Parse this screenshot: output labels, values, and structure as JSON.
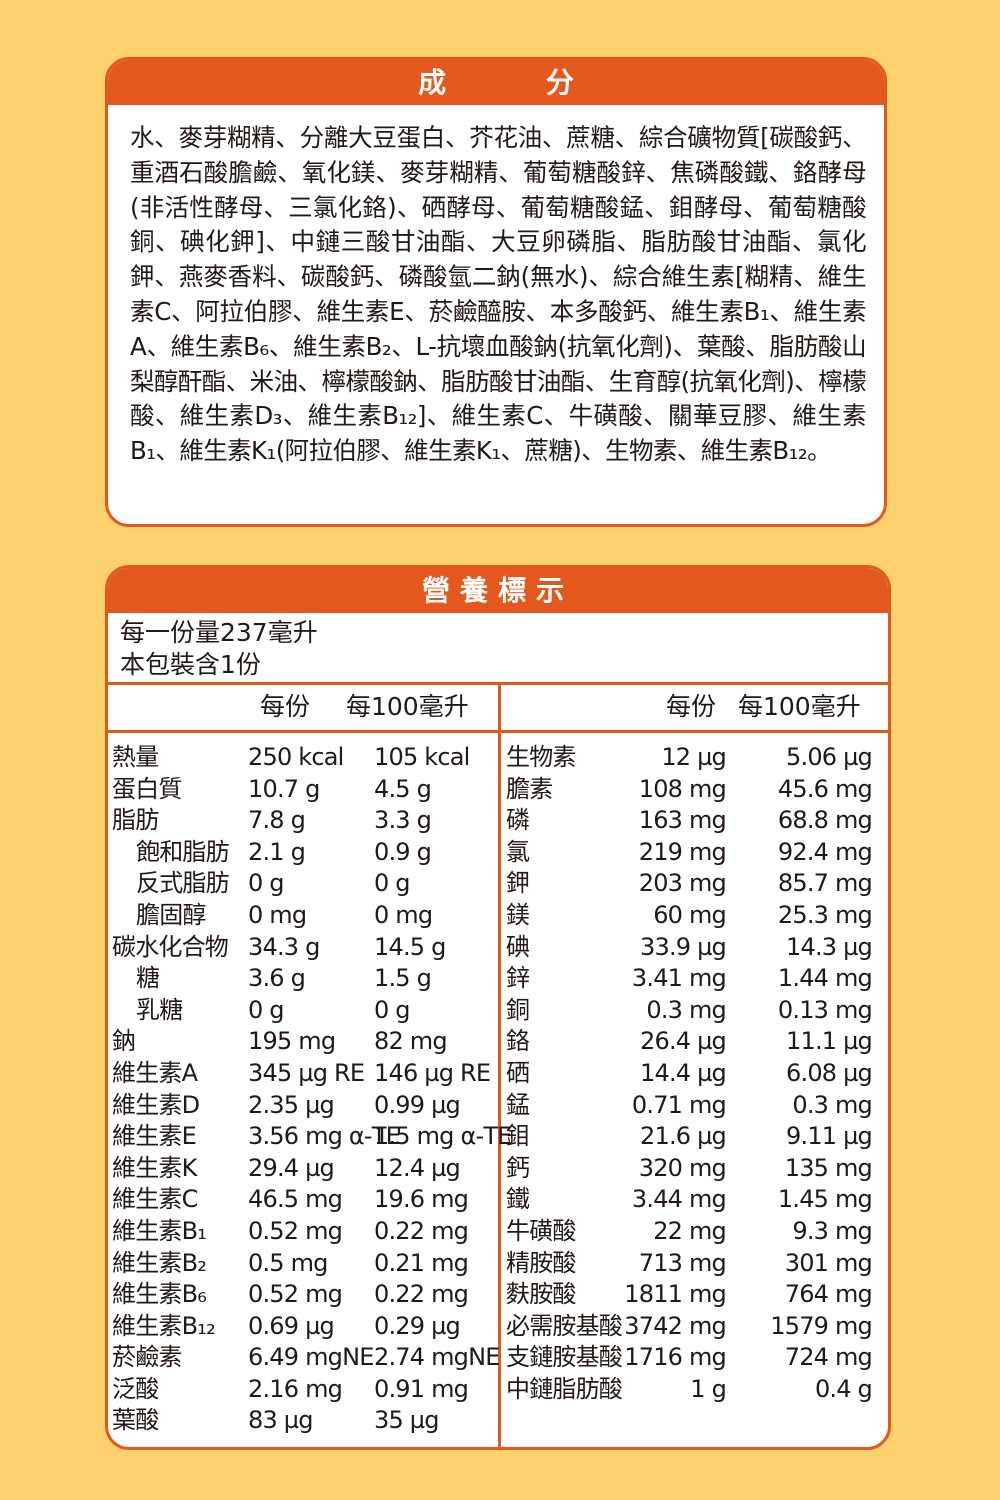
{
  "ingredients": {
    "title": "成 分",
    "text": "水、麥芽糊精、分離大豆蛋白、芥花油、蔗糖、綜合礦物質[碳酸鈣、重酒石酸膽鹼、氧化鎂、麥芽糊精、葡萄糖酸鋅、焦磷酸鐵、鉻酵母(非活性酵母、三氯化鉻)、硒酵母、葡萄糖酸錳、鉬酵母、葡萄糖酸銅、碘化鉀]、中鏈三酸甘油酯、大豆卵磷脂、脂肪酸甘油酯、氯化鉀、燕麥香料、碳酸鈣、磷酸氫二鈉(無水)、綜合維生素[糊精、維生素C、阿拉伯膠、維生素E、菸鹼醯胺、本多酸鈣、維生素B₁、維生素A、維生素B₆、維生素B₂、L-抗壞血酸鈉(抗氧化劑)、葉酸、脂肪酸山梨醇酐酯、米油、檸檬酸鈉、脂肪酸甘油酯、生育醇(抗氧化劑)、檸檬酸、維生素D₃、維生素B₁₂]、維生素C、牛磺酸、關華豆膠、維生素B₁、維生素K₁(阿拉伯膠、維生素K₁、蔗糖)、生物素、維生素B₁₂。"
  },
  "nutrition": {
    "title": "營養標示",
    "serving_size": "每一份量237毫升",
    "servings": "本包裝含1份",
    "col_per_serving": "每份",
    "col_per_100": "每100毫升",
    "left_rows": [
      {
        "name": "熱量",
        "per": "250 kcal",
        "per100": "105 kcal",
        "indent": false
      },
      {
        "name": "蛋白質",
        "per": "10.7 g",
        "per100": "4.5 g",
        "indent": false
      },
      {
        "name": "脂肪",
        "per": "7.8 g",
        "per100": "3.3 g",
        "indent": false
      },
      {
        "name": "飽和脂肪",
        "per": "2.1 g",
        "per100": "0.9 g",
        "indent": true
      },
      {
        "name": "反式脂肪",
        "per": "0 g",
        "per100": "0 g",
        "indent": true
      },
      {
        "name": "膽固醇",
        "per": "0 mg",
        "per100": "0 mg",
        "indent": true
      },
      {
        "name": "碳水化合物",
        "per": "34.3 g",
        "per100": "14.5 g",
        "indent": false
      },
      {
        "name": "糖",
        "per": "3.6 g",
        "per100": "1.5 g",
        "indent": true
      },
      {
        "name": "乳糖",
        "per": "0 g",
        "per100": "0 g",
        "indent": true
      },
      {
        "name": "鈉",
        "per": "195 mg",
        "per100": "82 mg",
        "indent": false
      },
      {
        "name": "維生素A",
        "per": "345 µg RE",
        "per100": "146 µg RE",
        "indent": false
      },
      {
        "name": "維生素D",
        "per": "2.35 µg",
        "per100": "0.99 µg",
        "indent": false
      },
      {
        "name": "維生素E",
        "per": "3.56 mg α-TE",
        "per100": "1.5 mg α-TE",
        "indent": false
      },
      {
        "name": "維生素K",
        "per": "29.4 µg",
        "per100": "12.4 µg",
        "indent": false
      },
      {
        "name": "維生素C",
        "per": "46.5 mg",
        "per100": "19.6 mg",
        "indent": false
      },
      {
        "name": "維生素B₁",
        "per": "0.52 mg",
        "per100": "0.22 mg",
        "indent": false
      },
      {
        "name": "維生素B₂",
        "per": "0.5 mg",
        "per100": "0.21 mg",
        "indent": false
      },
      {
        "name": "維生素B₆",
        "per": "0.52 mg",
        "per100": "0.22 mg",
        "indent": false
      },
      {
        "name": "維生素B₁₂",
        "per": "0.69 µg",
        "per100": "0.29 µg",
        "indent": false
      },
      {
        "name": "菸鹼素",
        "per": "6.49 mgNE",
        "per100": "2.74 mgNE",
        "indent": false
      },
      {
        "name": "泛酸",
        "per": "2.16 mg",
        "per100": "0.91 mg",
        "indent": false
      },
      {
        "name": "葉酸",
        "per": "83 µg",
        "per100": "35 µg",
        "indent": false
      }
    ],
    "right_rows": [
      {
        "name": "生物素",
        "per": "12 µg",
        "per100": "5.06 µg"
      },
      {
        "name": "膽素",
        "per": "108 mg",
        "per100": "45.6 mg"
      },
      {
        "name": "磷",
        "per": "163 mg",
        "per100": "68.8 mg"
      },
      {
        "name": "氯",
        "per": "219 mg",
        "per100": "92.4 mg"
      },
      {
        "name": "鉀",
        "per": "203 mg",
        "per100": "85.7 mg"
      },
      {
        "name": "鎂",
        "per": "60 mg",
        "per100": "25.3 mg"
      },
      {
        "name": "碘",
        "per": "33.9 µg",
        "per100": "14.3 µg"
      },
      {
        "name": "鋅",
        "per": "3.41 mg",
        "per100": "1.44 mg"
      },
      {
        "name": "銅",
        "per": "0.3 mg",
        "per100": "0.13 mg"
      },
      {
        "name": "鉻",
        "per": "26.4 µg",
        "per100": "11.1 µg"
      },
      {
        "name": "硒",
        "per": "14.4 µg",
        "per100": "6.08 µg"
      },
      {
        "name": "錳",
        "per": "0.71 mg",
        "per100": "0.3 mg"
      },
      {
        "name": "鉬",
        "per": "21.6 µg",
        "per100": "9.11 µg"
      },
      {
        "name": "鈣",
        "per": "320 mg",
        "per100": "135 mg"
      },
      {
        "name": "鐵",
        "per": "3.44 mg",
        "per100": "1.45 mg"
      },
      {
        "name": "牛磺酸",
        "per": "22 mg",
        "per100": "9.3 mg"
      },
      {
        "name": "精胺酸",
        "per": "713 mg",
        "per100": "301 mg"
      },
      {
        "name": "麩胺酸",
        "per": "1811 mg",
        "per100": "764 mg"
      },
      {
        "name": "必需胺基酸",
        "per": "3742 mg",
        "per100": "1579 mg"
      },
      {
        "name": "支鏈胺基酸",
        "per": "1716 mg",
        "per100": "724 mg"
      },
      {
        "name": "中鏈脂肪酸",
        "per": "1 g",
        "per100": "0.4 g"
      }
    ]
  },
  "colors": {
    "background": "#FDD26E",
    "accent": "#E3581C"
  }
}
